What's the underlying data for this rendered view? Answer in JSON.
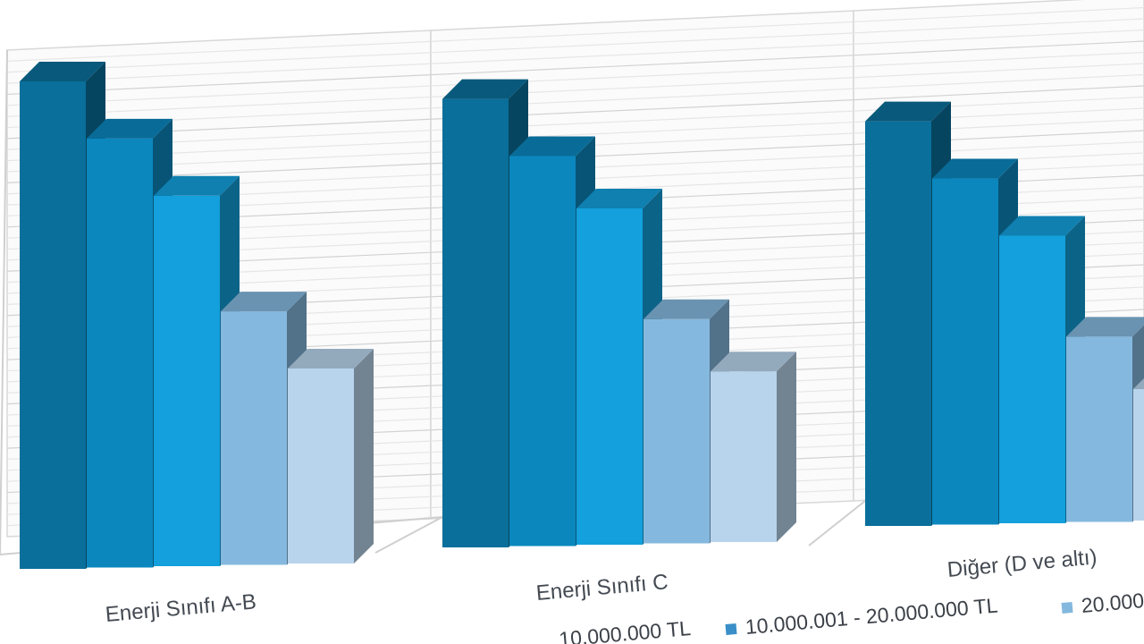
{
  "chart_data": {
    "type": "bar",
    "style": "3d-clustered-column",
    "title": "",
    "xlabel": "",
    "ylabel": "",
    "grid": true,
    "legend_position": "bottom",
    "categories": [
      "Enerji Sınıfı A-B",
      "Enerji Sınıfı C",
      "Diğer (D ve altı)"
    ],
    "series": [
      {
        "color": "#0a6f9a",
        "values": [
          100,
          92,
          83
        ]
      },
      {
        "color": "#0b87be",
        "values": [
          88,
          80,
          71
        ]
      },
      {
        "color": "#13a0dc",
        "values": [
          76,
          69,
          59
        ]
      },
      {
        "color": "#85b8de",
        "values": [
          52,
          46,
          38
        ]
      },
      {
        "color": "#b8d4ec",
        "values": [
          40,
          35,
          27
        ]
      }
    ],
    "legend": [
      {
        "label": "",
        "color": "#0a6f9a"
      },
      {
        "label": "10.000.001 - 20.000.000 TL",
        "color": "#0b87be"
      },
      {
        "label": "",
        "color": "#13a0dc"
      },
      {
        "label": "20.000",
        "color": "#85b8de"
      },
      {
        "label": "",
        "color": "#b8d4ec"
      }
    ],
    "partial_legend_text": "... 10.000.000 TL"
  }
}
